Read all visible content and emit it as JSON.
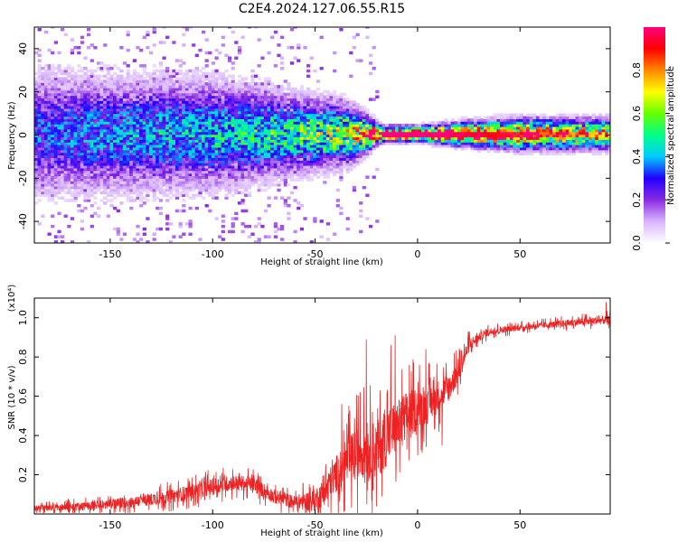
{
  "title": "C2E4.2024.127.06.55.R15",
  "chart_data": [
    {
      "type": "heatmap",
      "title": "C2E4.2024.127.06.55.R15",
      "xlabel": "Height of straight line (km)",
      "ylabel": "Frequency (Hz)",
      "xlim": [
        -187,
        94
      ],
      "ylim": [
        -50,
        50
      ],
      "x_ticks": [
        -150,
        -100,
        -50,
        0,
        50
      ],
      "y_ticks": [
        -40,
        -20,
        0,
        20,
        40
      ],
      "colorbar": {
        "label": "Normalized spectral amplitude",
        "range": [
          0,
          1
        ],
        "ticks": [
          0.0,
          0.2,
          0.4,
          0.6,
          0.8
        ],
        "colormap": [
          "#ffffff",
          "#d8b4ff",
          "#8a2be2",
          "#2200ff",
          "#00ccff",
          "#00ff88",
          "#66ff00",
          "#ffff00",
          "#ff8800",
          "#ff0000",
          "#ff0080"
        ]
      },
      "band": [
        {
          "x": -185,
          "spread_hz": 16,
          "peak_amplitude": 0.3
        },
        {
          "x": -150,
          "spread_hz": 15,
          "peak_amplitude": 0.35
        },
        {
          "x": -100,
          "spread_hz": 14,
          "peak_amplitude": 0.4
        },
        {
          "x": -60,
          "spread_hz": 10,
          "peak_amplitude": 0.5
        },
        {
          "x": -35,
          "spread_hz": 8,
          "peak_amplitude": 0.6
        },
        {
          "x": -18,
          "spread_hz": 2,
          "peak_amplitude": 1.0
        },
        {
          "x": 0,
          "spread_hz": 2,
          "peak_amplitude": 1.0
        },
        {
          "x": 20,
          "spread_hz": 3,
          "peak_amplitude": 0.95
        },
        {
          "x": 50,
          "spread_hz": 4,
          "peak_amplitude": 0.85
        },
        {
          "x": 94,
          "spread_hz": 4,
          "peak_amplitude": 0.7
        }
      ]
    },
    {
      "type": "line",
      "xlabel": "Height of straight line (km)",
      "ylabel": "SNR (10 * v/v)",
      "y_multiplier": "(x10⁴)",
      "xlim": [
        -187,
        94
      ],
      "ylim": [
        0,
        1.1
      ],
      "x_ticks": [
        -150,
        -100,
        -50,
        0,
        50
      ],
      "y_ticks": [
        0.2,
        0.4,
        0.6,
        0.8,
        1.0
      ],
      "color": "#ee2222",
      "trend": {
        "x": [
          -187,
          -160,
          -140,
          -120,
          -100,
          -90,
          -80,
          -70,
          -60,
          -50,
          -45,
          -40,
          -35,
          -30,
          -25,
          -20,
          -15,
          -10,
          -5,
          0,
          5,
          10,
          15,
          20,
          25,
          30,
          35,
          50,
          70,
          94
        ],
        "y": [
          0.03,
          0.04,
          0.06,
          0.09,
          0.14,
          0.16,
          0.15,
          0.09,
          0.06,
          0.07,
          0.12,
          0.2,
          0.26,
          0.3,
          0.34,
          0.32,
          0.4,
          0.44,
          0.5,
          0.54,
          0.56,
          0.6,
          0.64,
          0.72,
          0.86,
          0.9,
          0.93,
          0.95,
          0.97,
          0.99
        ]
      },
      "noise": {
        "x": [
          -187,
          -140,
          -100,
          -60,
          -45,
          -30,
          -15,
          0,
          10,
          20,
          30,
          50,
          94
        ],
        "amplitude": [
          0.02,
          0.04,
          0.06,
          0.05,
          0.1,
          0.2,
          0.22,
          0.16,
          0.12,
          0.08,
          0.03,
          0.02,
          0.03
        ]
      },
      "spikes": [
        {
          "x": -37,
          "y": 0.56
        },
        {
          "x": -28,
          "y": 0.62
        },
        {
          "x": -25,
          "y": 0.89
        },
        {
          "x": -22,
          "y": 0.52
        },
        {
          "x": -13,
          "y": 0.86
        },
        {
          "x": -11,
          "y": 0.91
        },
        {
          "x": -4,
          "y": 0.76
        },
        {
          "x": 4,
          "y": 0.84
        },
        {
          "x": 8,
          "y": 0.7
        },
        {
          "x": 12,
          "y": 0.35
        },
        {
          "x": 18,
          "y": 0.82
        },
        {
          "x": 92,
          "y": 1.08
        }
      ]
    }
  ]
}
